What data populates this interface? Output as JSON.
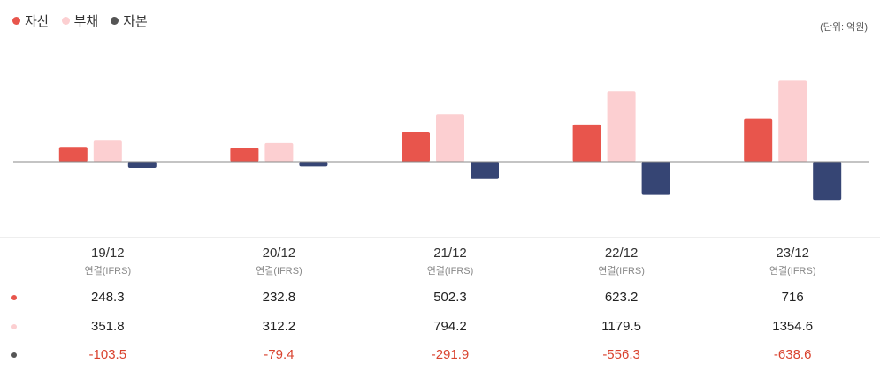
{
  "legend": {
    "assets": "자산",
    "liabilities": "부채",
    "equity": "자본"
  },
  "unit_label": "(단위: 억원)",
  "colors": {
    "assets": "#e8554c",
    "liabilities": "#fccfd1",
    "equity": "#364574",
    "baseline": "#888888"
  },
  "chart_data": {
    "type": "bar",
    "categories": [
      "19/12",
      "20/12",
      "21/12",
      "22/12",
      "23/12"
    ],
    "category_subtitle": "연결(IFRS)",
    "series": [
      {
        "name": "자산",
        "values": [
          248.3,
          232.8,
          502.3,
          623.2,
          716
        ]
      },
      {
        "name": "부채",
        "values": [
          351.8,
          312.2,
          794.2,
          1179.5,
          1354.6
        ]
      },
      {
        "name": "자본",
        "values": [
          -103.5,
          -79.4,
          -291.9,
          -556.3,
          -638.6
        ]
      }
    ],
    "unit": "억원",
    "ylim": [
      -700,
      1400
    ],
    "grid": false,
    "legend_position": "top-left"
  },
  "table": {
    "rows": [
      {
        "series": "assets",
        "display": [
          "248.3",
          "232.8",
          "502.3",
          "623.2",
          "716"
        ]
      },
      {
        "series": "liabilities",
        "display": [
          "351.8",
          "312.2",
          "794.2",
          "1179.5",
          "1354.6"
        ]
      },
      {
        "series": "equity",
        "display": [
          "-103.5",
          "-79.4",
          "-291.9",
          "-556.3",
          "-638.6"
        ]
      }
    ]
  }
}
